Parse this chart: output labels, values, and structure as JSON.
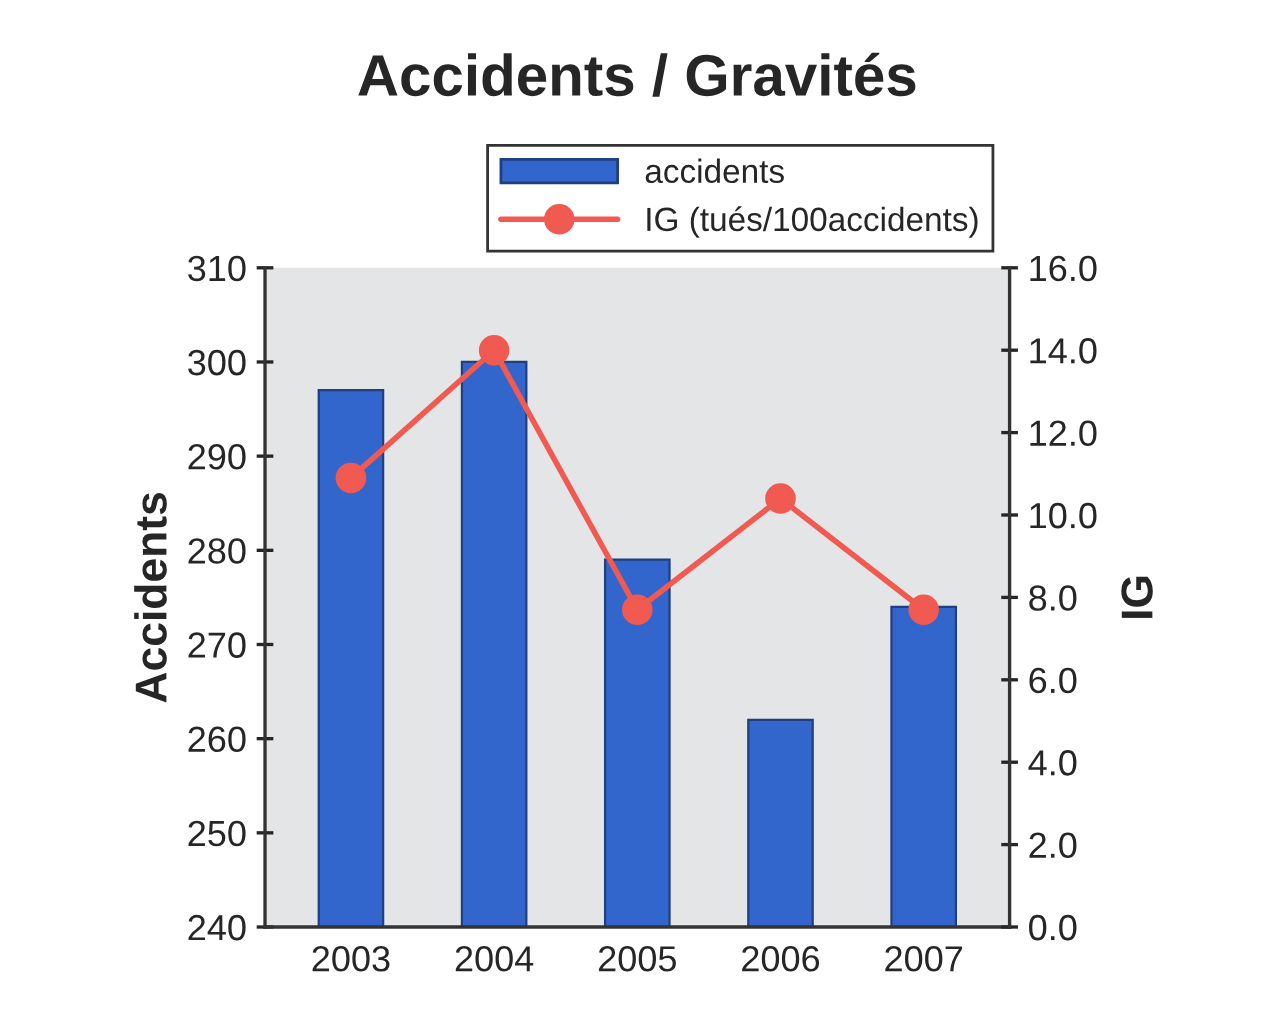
{
  "chart_data": {
    "type": "bar",
    "title": "Accidents / Gravités",
    "ylabel": "Accidents",
    "y2label": "IG",
    "categories": [
      "2003",
      "2004",
      "2005",
      "2006",
      "2007"
    ],
    "series": [
      {
        "name": "accidents",
        "color": "#3366cc",
        "values": [
          297,
          300,
          279,
          262,
          274
        ]
      },
      {
        "name": "IG (tués/100accidents)",
        "type": "line",
        "axis": "y2",
        "color": "#f05a50",
        "marker": "circle",
        "values": [
          10.9,
          14.0,
          7.7,
          10.4,
          7.7
        ]
      }
    ],
    "ylim": [
      240,
      310
    ],
    "yticks": [
      240,
      250,
      260,
      270,
      280,
      290,
      300,
      310
    ],
    "y2lim": [
      0,
      16
    ],
    "y2ticks": [
      {
        "value": 0,
        "label": "0.0"
      },
      {
        "value": 2,
        "label": "2.0"
      },
      {
        "value": 4,
        "label": "4.0"
      },
      {
        "value": 6,
        "label": "6.0"
      },
      {
        "value": 8,
        "label": "8.0"
      },
      {
        "value": 10,
        "label": "10.0"
      },
      {
        "value": 12,
        "label": "12.0"
      },
      {
        "value": 14,
        "label": "14.0"
      },
      {
        "value": 16,
        "label": "16.0"
      }
    ],
    "grid": false,
    "legend": "top right"
  }
}
